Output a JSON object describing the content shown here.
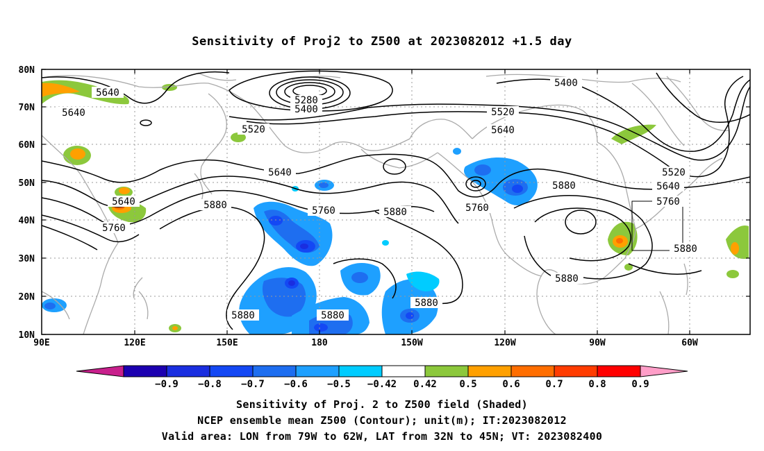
{
  "title": "Sensitivity of Proj2 to Z500 at 2023082012 +1.5 day",
  "lat_ticks": [
    "80N",
    "70N",
    "60N",
    "50N",
    "40N",
    "30N",
    "20N",
    "10N"
  ],
  "lon_ticks": [
    "90E",
    "120E",
    "150E",
    "180",
    "150W",
    "120W",
    "90W",
    "60W"
  ],
  "contour_labels": [
    {
      "id": "c1",
      "text": "5640"
    },
    {
      "id": "c2",
      "text": "5640"
    },
    {
      "id": "c3",
      "text": "5280"
    },
    {
      "id": "c4",
      "text": "5400"
    },
    {
      "id": "c5",
      "text": "5400"
    },
    {
      "id": "c6",
      "text": "5520"
    },
    {
      "id": "c7",
      "text": "5520"
    },
    {
      "id": "c8",
      "text": "5640"
    },
    {
      "id": "c9",
      "text": "5640"
    },
    {
      "id": "c10",
      "text": "5520"
    },
    {
      "id": "c11",
      "text": "5640"
    },
    {
      "id": "c12",
      "text": "5640"
    },
    {
      "id": "c13",
      "text": "5880"
    },
    {
      "id": "c14",
      "text": "5760"
    },
    {
      "id": "c15",
      "text": "5760"
    },
    {
      "id": "c16",
      "text": "5880"
    },
    {
      "id": "c17",
      "text": "5760"
    },
    {
      "id": "c18",
      "text": "5880"
    },
    {
      "id": "c19",
      "text": "5760"
    },
    {
      "id": "c20",
      "text": "5880"
    },
    {
      "id": "c21",
      "text": "5880"
    },
    {
      "id": "c22",
      "text": "5880"
    },
    {
      "id": "c23",
      "text": "5880"
    },
    {
      "id": "c24",
      "text": "5880"
    }
  ],
  "colorbar": {
    "labels": [
      "-0.9",
      "-0.8",
      "-0.7",
      "-0.6",
      "-0.5",
      "-0.42",
      "0.42",
      "0.5",
      "0.6",
      "0.7",
      "0.8",
      "0.9"
    ],
    "colors": [
      "#1c00b0",
      "#1a2ee0",
      "#1448f4",
      "#1e6ef0",
      "#1ea0ff",
      "#00ccff",
      "#ffffff",
      "#8cc83c",
      "#ffa000",
      "#ff6e00",
      "#ff3c00",
      "#ff0000"
    ],
    "low_end_color": "#c8208c",
    "high_end_color": "#ff9ec8"
  },
  "caption": [
    "Sensitivity of Proj. 2 to Z500 field (Shaded)",
    "NCEP ensemble mean Z500 (Contour); unit(m); IT:2023082012",
    "Valid area: LON from 79W to 62W, LAT from 32N to 45N; VT: 2023082400"
  ]
}
